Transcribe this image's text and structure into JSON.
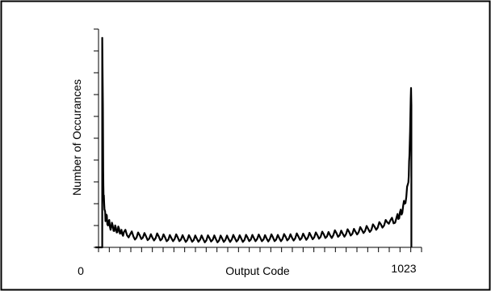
{
  "chart_data": {
    "type": "line",
    "title": "",
    "xlabel": "Output Code",
    "ylabel": "Number of Occurances",
    "xlim": [
      0,
      1023
    ],
    "tick_labels": {
      "x_left": "0",
      "x_right": "1023"
    },
    "y_ticks": 11,
    "x_ticks": 31,
    "grid": false,
    "series": [
      {
        "color": "#000000",
        "x": [
          0,
          22,
          22,
          24,
          25,
          26,
          28,
          30,
          32,
          35,
          38,
          42,
          46,
          50,
          55,
          60,
          65,
          70,
          75,
          80,
          85,
          90,
          100,
          110,
          120,
          130,
          140,
          150,
          160,
          170,
          180,
          190,
          200,
          210,
          220,
          230,
          240,
          250,
          260,
          270,
          280,
          290,
          300,
          310,
          320,
          330,
          340,
          350,
          360,
          370,
          380,
          390,
          400,
          410,
          420,
          430,
          440,
          450,
          460,
          470,
          480,
          490,
          500,
          510,
          520,
          530,
          540,
          550,
          560,
          570,
          580,
          590,
          600,
          610,
          620,
          630,
          640,
          650,
          660,
          670,
          680,
          690,
          700,
          710,
          720,
          730,
          740,
          750,
          760,
          770,
          780,
          790,
          800,
          810,
          820,
          830,
          840,
          850,
          860,
          870,
          880,
          890,
          900,
          910,
          920,
          930,
          940,
          950,
          955,
          960,
          965,
          970,
          975,
          980,
          985,
          988,
          990,
          992,
          994,
          995,
          996,
          996
        ],
        "y": [
          0,
          0,
          9.6,
          6.5,
          3.5,
          2.4,
          2.0,
          1.7,
          1.2,
          1.5,
          1.05,
          1.2,
          0.95,
          0.9,
          1.0,
          0.75,
          0.9,
          0.7,
          0.85,
          0.65,
          0.6,
          0.7,
          0.55,
          0.6,
          0.5,
          0.45,
          0.55,
          0.45,
          0.5,
          0.4,
          0.45,
          0.42,
          0.5,
          0.38,
          0.45,
          0.35,
          0.42,
          0.38,
          0.45,
          0.36,
          0.4,
          0.34,
          0.42,
          0.33,
          0.4,
          0.35,
          0.38,
          0.32,
          0.42,
          0.35,
          0.38,
          0.32,
          0.4,
          0.34,
          0.38,
          0.36,
          0.42,
          0.35,
          0.4,
          0.34,
          0.45,
          0.36,
          0.42,
          0.38,
          0.44,
          0.36,
          0.4,
          0.38,
          0.45,
          0.36,
          0.42,
          0.38,
          0.48,
          0.4,
          0.44,
          0.42,
          0.5,
          0.42,
          0.48,
          0.45,
          0.52,
          0.46,
          0.55,
          0.48,
          0.6,
          0.5,
          0.55,
          0.55,
          0.65,
          0.55,
          0.62,
          0.6,
          0.7,
          0.62,
          0.72,
          0.7,
          0.8,
          0.75,
          0.85,
          0.8,
          0.95,
          0.9,
          1.05,
          1.0,
          1.15,
          1.25,
          1.1,
          1.4,
          1.3,
          1.6,
          1.5,
          1.9,
          2.0,
          2.3,
          2.9,
          3.3,
          4.2,
          5.3,
          6.8,
          7.3,
          6.5,
          0
        ]
      }
    ]
  }
}
